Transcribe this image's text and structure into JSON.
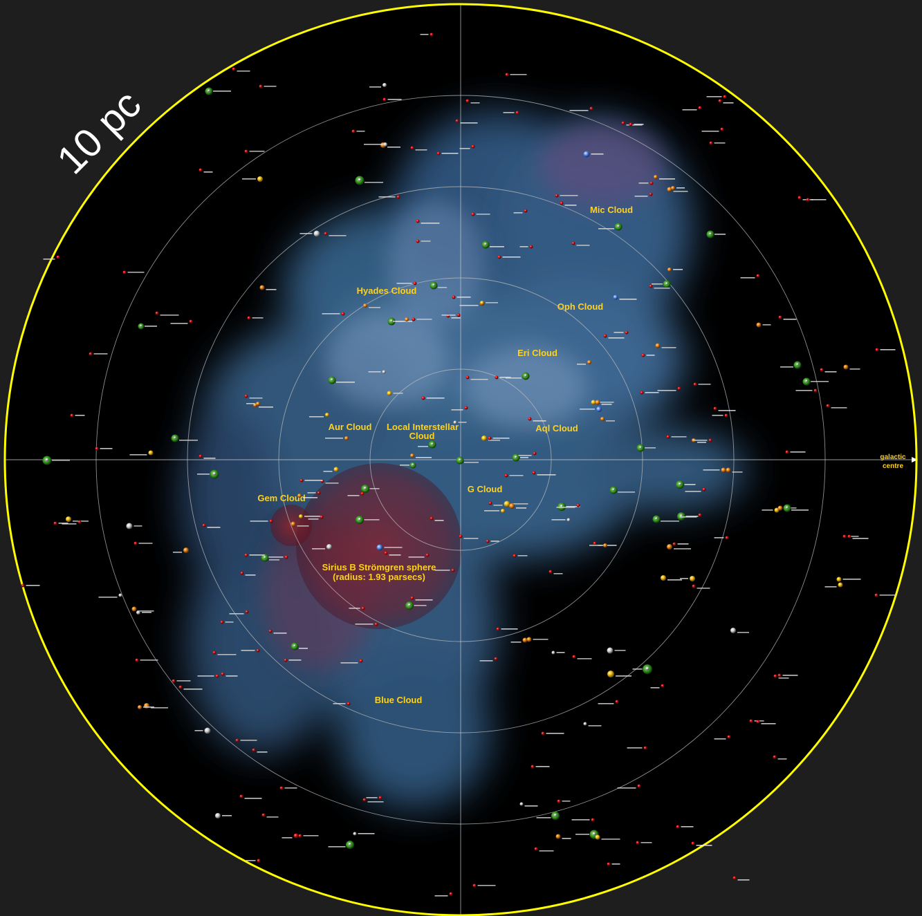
{
  "map": {
    "scale_label": "10 pc",
    "axis_label_line1": "galactic",
    "axis_label_line2": "centre",
    "colors": {
      "boundary": "#ffff00",
      "background": "#000000",
      "frame": "#1e1e1e",
      "rings": "#bdbdbd",
      "cloud_label": "#ffd21a",
      "stromgren": "#8a1e2a"
    },
    "clouds": [
      {
        "name": "Mic Cloud"
      },
      {
        "name": "Hyades Cloud"
      },
      {
        "name": "Oph Cloud"
      },
      {
        "name": "Eri Cloud"
      },
      {
        "name": "Aur Cloud"
      },
      {
        "name": "Local Interstellar"
      },
      {
        "name": "Cloud"
      },
      {
        "name": "Aql Cloud"
      },
      {
        "name": "Gem Cloud"
      },
      {
        "name": "G Cloud"
      },
      {
        "name": "Sirius B Strömgren sphere"
      },
      {
        "name": "(radius: 1.93 parsecs)"
      },
      {
        "name": "Blue Cloud"
      }
    ]
  }
}
